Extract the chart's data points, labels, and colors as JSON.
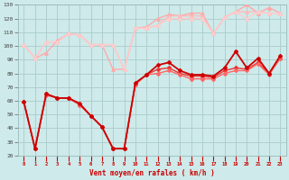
{
  "xlabel": "Vent moyen/en rafales ( km/h )",
  "background_color": "#ceeaea",
  "grid_color": "#aacccc",
  "xlim": [
    -0.5,
    23.5
  ],
  "ylim": [
    20,
    130
  ],
  "yticks": [
    20,
    30,
    40,
    50,
    60,
    70,
    80,
    90,
    100,
    110,
    120,
    130
  ],
  "xticks": [
    0,
    1,
    2,
    3,
    4,
    5,
    6,
    7,
    8,
    9,
    10,
    11,
    12,
    13,
    14,
    15,
    16,
    17,
    18,
    19,
    20,
    21,
    22,
    23
  ],
  "series": [
    {
      "x": [
        0,
        1,
        2,
        3,
        4,
        5,
        6,
        7,
        8,
        9,
        10,
        11,
        12,
        13,
        14,
        15,
        16,
        17,
        18,
        19,
        20,
        21,
        22,
        23
      ],
      "y": [
        101,
        91,
        95,
        104,
        109,
        108,
        101,
        101,
        83,
        83,
        113,
        114,
        120,
        123,
        122,
        124,
        124,
        109,
        121,
        125,
        130,
        124,
        128,
        124
      ],
      "color": "#ffaaaa",
      "lw": 1.0,
      "marker": "^",
      "ms": 2.5,
      "zorder": 3
    },
    {
      "x": [
        0,
        1,
        2,
        3,
        4,
        5,
        6,
        7,
        8,
        9,
        10,
        11,
        12,
        13,
        14,
        15,
        16,
        17,
        18,
        19,
        20,
        21,
        22,
        23
      ],
      "y": [
        101,
        91,
        103,
        103,
        109,
        108,
        101,
        101,
        101,
        83,
        113,
        113,
        115,
        122,
        122,
        122,
        122,
        109,
        121,
        125,
        125,
        125,
        124,
        124
      ],
      "color": "#ffbbbb",
      "lw": 1.0,
      "marker": "^",
      "ms": 2.5,
      "zorder": 3
    },
    {
      "x": [
        0,
        1,
        2,
        3,
        4,
        5,
        6,
        7,
        8,
        9,
        10,
        11,
        12,
        13,
        14,
        15,
        16,
        17,
        18,
        19,
        20,
        21,
        22,
        23
      ],
      "y": [
        101,
        91,
        103,
        103,
        109,
        108,
        101,
        101,
        101,
        83,
        113,
        113,
        115,
        120,
        120,
        120,
        120,
        109,
        121,
        125,
        120,
        125,
        124,
        124
      ],
      "color": "#ffcccc",
      "lw": 1.0,
      "marker": "^",
      "ms": 2.5,
      "zorder": 3
    },
    {
      "x": [
        0,
        1,
        2,
        3,
        4,
        5,
        6,
        7,
        8,
        9,
        10,
        11,
        12,
        13,
        14,
        15,
        16,
        17,
        18,
        19,
        20,
        21,
        22,
        23
      ],
      "y": [
        59,
        25,
        65,
        62,
        62,
        58,
        49,
        41,
        25,
        25,
        73,
        79,
        86,
        88,
        82,
        79,
        79,
        78,
        84,
        96,
        84,
        91,
        80,
        93
      ],
      "color": "#cc0000",
      "lw": 1.3,
      "marker": "D",
      "ms": 2.0,
      "zorder": 5
    },
    {
      "x": [
        0,
        1,
        2,
        3,
        4,
        5,
        6,
        7,
        8,
        9,
        10,
        11,
        12,
        13,
        14,
        15,
        16,
        17,
        18,
        19,
        20,
        21,
        22,
        23
      ],
      "y": [
        59,
        25,
        65,
        62,
        62,
        57,
        49,
        41,
        25,
        25,
        72,
        79,
        83,
        84,
        80,
        78,
        78,
        77,
        82,
        84,
        83,
        88,
        80,
        91
      ],
      "color": "#ee3333",
      "lw": 1.0,
      "marker": "D",
      "ms": 2.0,
      "zorder": 4
    },
    {
      "x": [
        0,
        1,
        2,
        3,
        4,
        5,
        6,
        7,
        8,
        9,
        10,
        11,
        12,
        13,
        14,
        15,
        16,
        17,
        18,
        19,
        20,
        21,
        22,
        23
      ],
      "y": [
        59,
        25,
        64,
        62,
        62,
        57,
        49,
        41,
        25,
        25,
        72,
        79,
        80,
        82,
        79,
        76,
        76,
        76,
        80,
        82,
        82,
        87,
        79,
        91
      ],
      "color": "#ff6666",
      "lw": 1.0,
      "marker": "D",
      "ms": 2.0,
      "zorder": 4
    }
  ]
}
